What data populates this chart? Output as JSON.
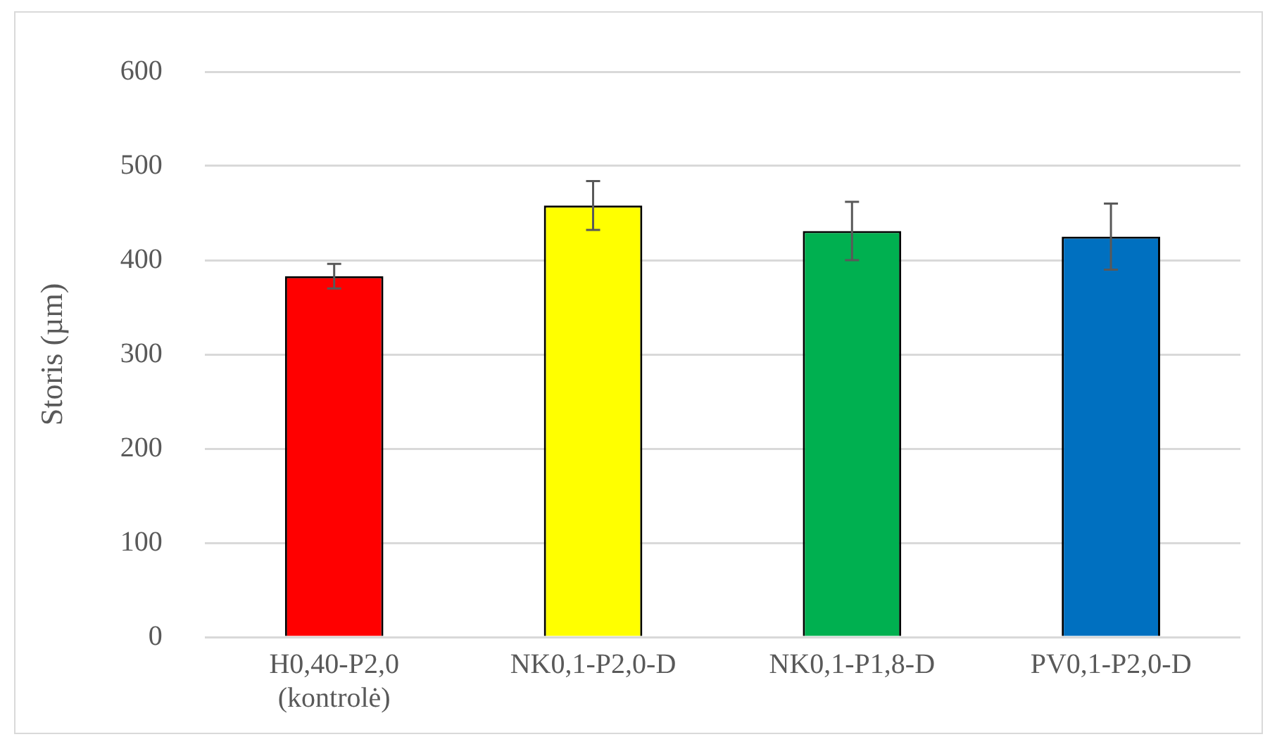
{
  "chart_data": {
    "type": "bar",
    "ylabel": "Storis (µm)",
    "categories": [
      "H0,40-P2,0 (kontrolė)",
      "NK0,1-P2,0-D",
      "NK0,1-P1,8-D",
      "PV0,1-P2,0-D"
    ],
    "values": [
      383,
      458,
      431,
      425
    ],
    "colors": [
      "#ff0000",
      "#ffff00",
      "#00b050",
      "#0070c0"
    ],
    "errors": [
      13,
      26,
      31,
      35
    ],
    "ylim": [
      0,
      600
    ],
    "yticks": [
      0,
      100,
      200,
      300,
      400,
      500,
      600
    ],
    "grid": "y",
    "legend": false
  }
}
